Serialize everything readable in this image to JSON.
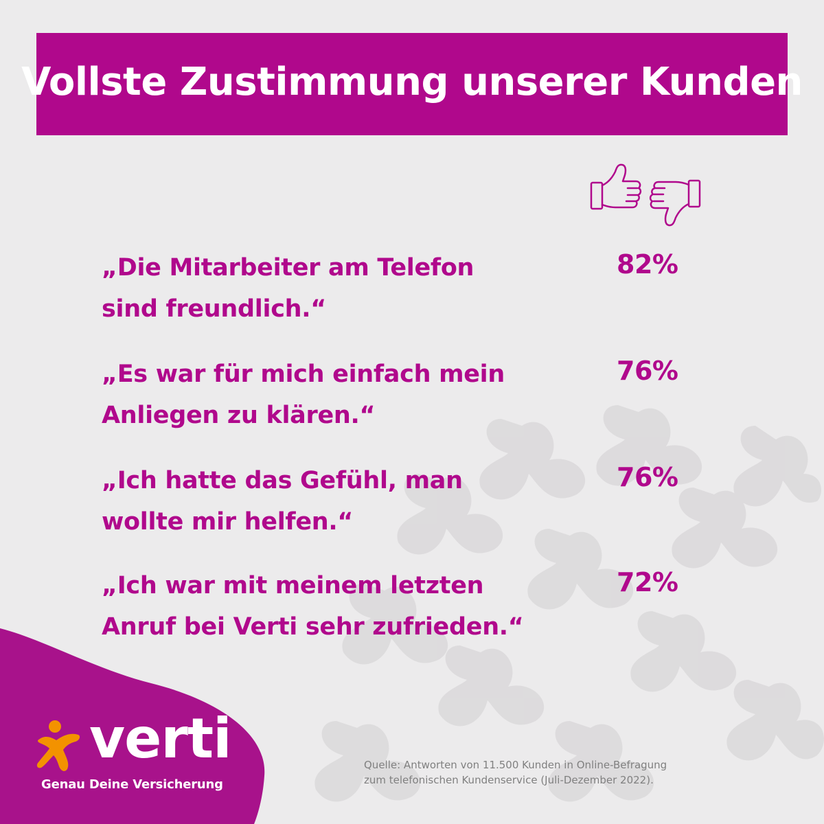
{
  "header": {
    "title": "Vollste Zustimmung unserer Kunden"
  },
  "icons": {
    "agree": "thumbs-up-icon",
    "disagree": "thumbs-down-icon"
  },
  "statements": [
    {
      "line1": "„Die Mitarbeiter am Telefon",
      "line2": "sind freundlich.“",
      "percent": "82%"
    },
    {
      "line1": "„Es war für mich einfach mein",
      "line2": "Anliegen zu klären.“",
      "percent": "76%"
    },
    {
      "line1": "„Ich hatte das Gefühl, man",
      "line2": "wollte mir helfen.“",
      "percent": "76%"
    },
    {
      "line1": "„Ich war mit meinem letzten",
      "line2": "Anruf bei Verti sehr zufrieden.“",
      "percent": "72%"
    }
  ],
  "brand": {
    "logo_text": "verti",
    "tagline": "Genau Deine Versicherung"
  },
  "source": {
    "line1": "Quelle: Antworten von 11.500 Kunden in Online-Befragung",
    "line2": "zum telefonischen Kundenservice (Juli-Dezember 2022)."
  },
  "colors": {
    "brand_magenta": "#b0088c",
    "background": "#ecebec",
    "accent_orange": "#f39200",
    "source_gray": "#808080"
  }
}
